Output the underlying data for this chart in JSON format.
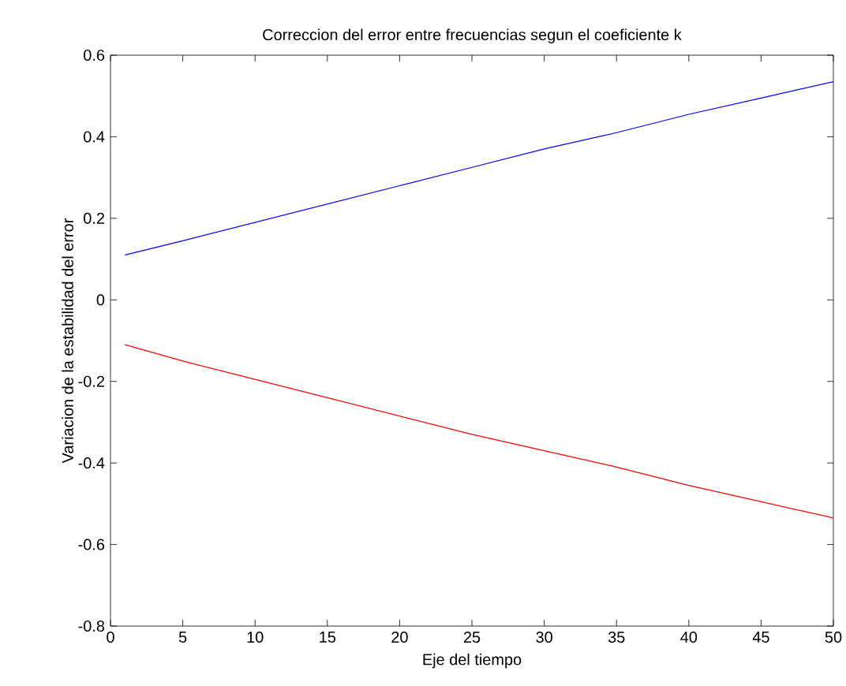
{
  "chart_data": {
    "type": "line",
    "title": "Correccion del error entre frecuencias segun el coeficiente k",
    "xlabel": "Eje del tiempo",
    "ylabel": "Variacion de la estabilidad del error",
    "x": [
      1,
      5,
      10,
      15,
      20,
      25,
      30,
      35,
      40,
      45,
      50
    ],
    "series": [
      {
        "color": "#0000ff",
        "values": [
          0.11,
          0.145,
          0.19,
          0.235,
          0.28,
          0.325,
          0.37,
          0.41,
          0.455,
          0.495,
          0.535
        ]
      },
      {
        "color": "#ff0000",
        "values": [
          -0.11,
          -0.15,
          -0.195,
          -0.24,
          -0.285,
          -0.33,
          -0.37,
          -0.41,
          -0.455,
          -0.495,
          -0.535
        ]
      }
    ],
    "xlim": [
      0,
      50
    ],
    "ylim": [
      -0.8,
      0.6
    ],
    "xticks": [
      0,
      5,
      10,
      15,
      20,
      25,
      30,
      35,
      40,
      45,
      50
    ],
    "yticks": [
      -0.8,
      -0.6,
      -0.4,
      -0.2,
      0,
      0.2,
      0.4,
      0.6
    ],
    "marker": "none"
  }
}
